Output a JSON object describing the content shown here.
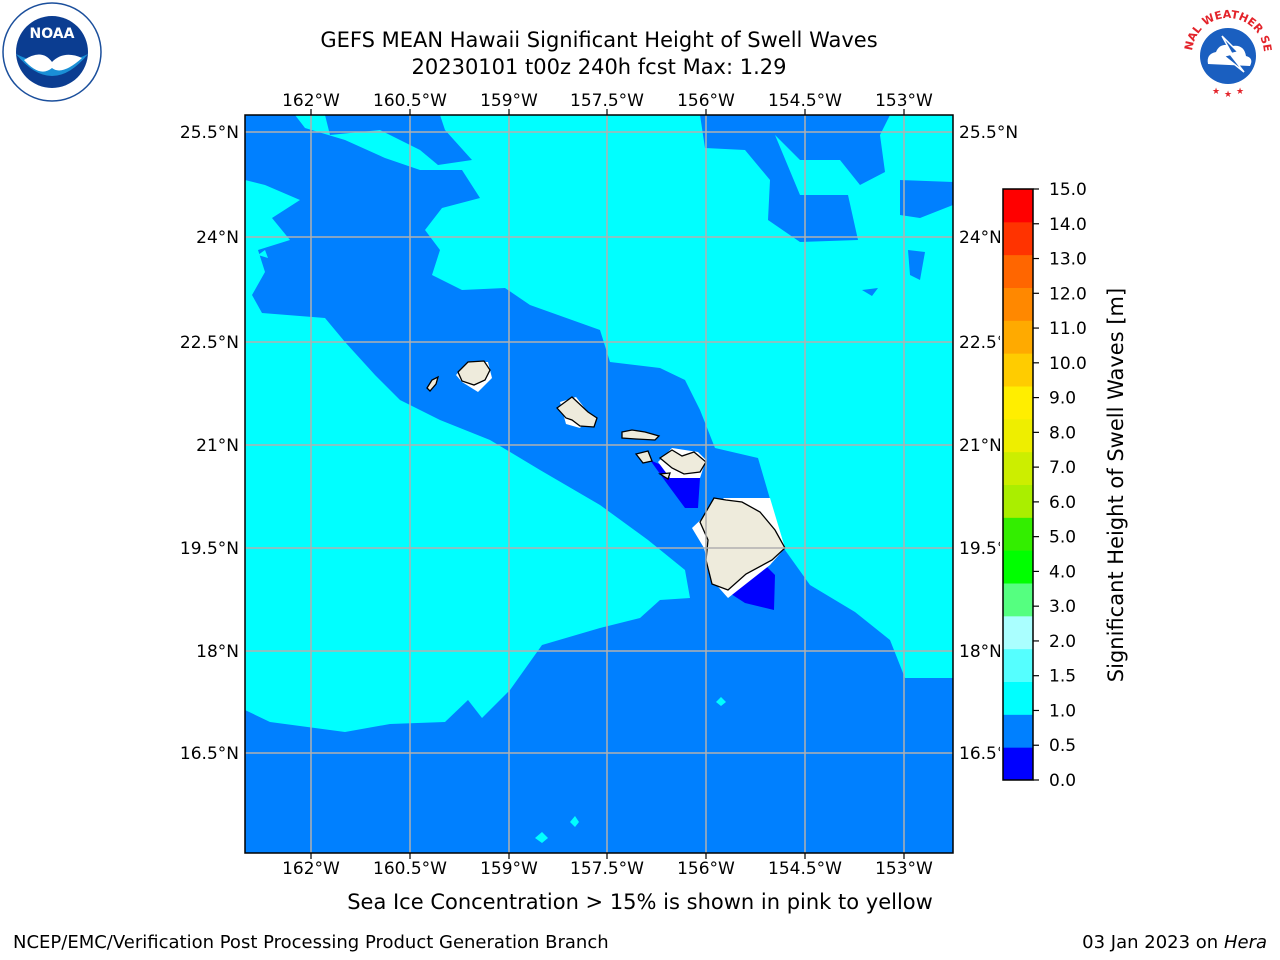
{
  "header": {
    "title_line1": "GEFS MEAN Hawaii Significant Height of Swell Waves",
    "title_line2": "20230101 t00z 240h fcst   Max: 1.29"
  },
  "logos": {
    "left": {
      "icon": "noaa-logo",
      "text": "NOAA"
    },
    "right": {
      "icon": "nws-logo",
      "text": "NATIONAL WEATHER SERVICE"
    }
  },
  "map": {
    "lon_labels": [
      "162°W",
      "160.5°W",
      "159°W",
      "157.5°W",
      "156°W",
      "154.5°W",
      "153°W"
    ],
    "lat_labels": [
      "25.5°N",
      "24°N",
      "22.5°N",
      "21°N",
      "19.5°N",
      "18°N",
      "16.5°N"
    ],
    "colors": {
      "cyan": "#00ffff",
      "blue": "#0080ff",
      "deep_blue": "#0000ff",
      "land": "#eeebdc",
      "grid": "#b0b0b0"
    }
  },
  "colorbar": {
    "label": "Significant Height of Swell Waves [m]",
    "ticks": [
      "0.0",
      "0.5",
      "1.0",
      "1.5",
      "2.0",
      "3.0",
      "4.0",
      "5.0",
      "6.0",
      "7.0",
      "8.0",
      "9.0",
      "10.0",
      "11.0",
      "12.0",
      "13.0",
      "14.0",
      "15.0"
    ],
    "colors": [
      "#0000ff",
      "#0080ff",
      "#00ffff",
      "#55ffff",
      "#aaffff",
      "#55ff80",
      "#00ff00",
      "#33ee00",
      "#aaee00",
      "#ccee00",
      "#eeee00",
      "#ffee00",
      "#ffcc00",
      "#ffaa00",
      "#ff8800",
      "#ff6600",
      "#ff3300",
      "#ff0000"
    ]
  },
  "subtitle": "Sea Ice Concentration > 15% is shown in pink to yellow",
  "footer": {
    "left": "NCEP/EMC/Verification Post Processing Product Generation Branch",
    "right_prefix": "03 Jan 2023 on ",
    "right_host": "Hera"
  }
}
